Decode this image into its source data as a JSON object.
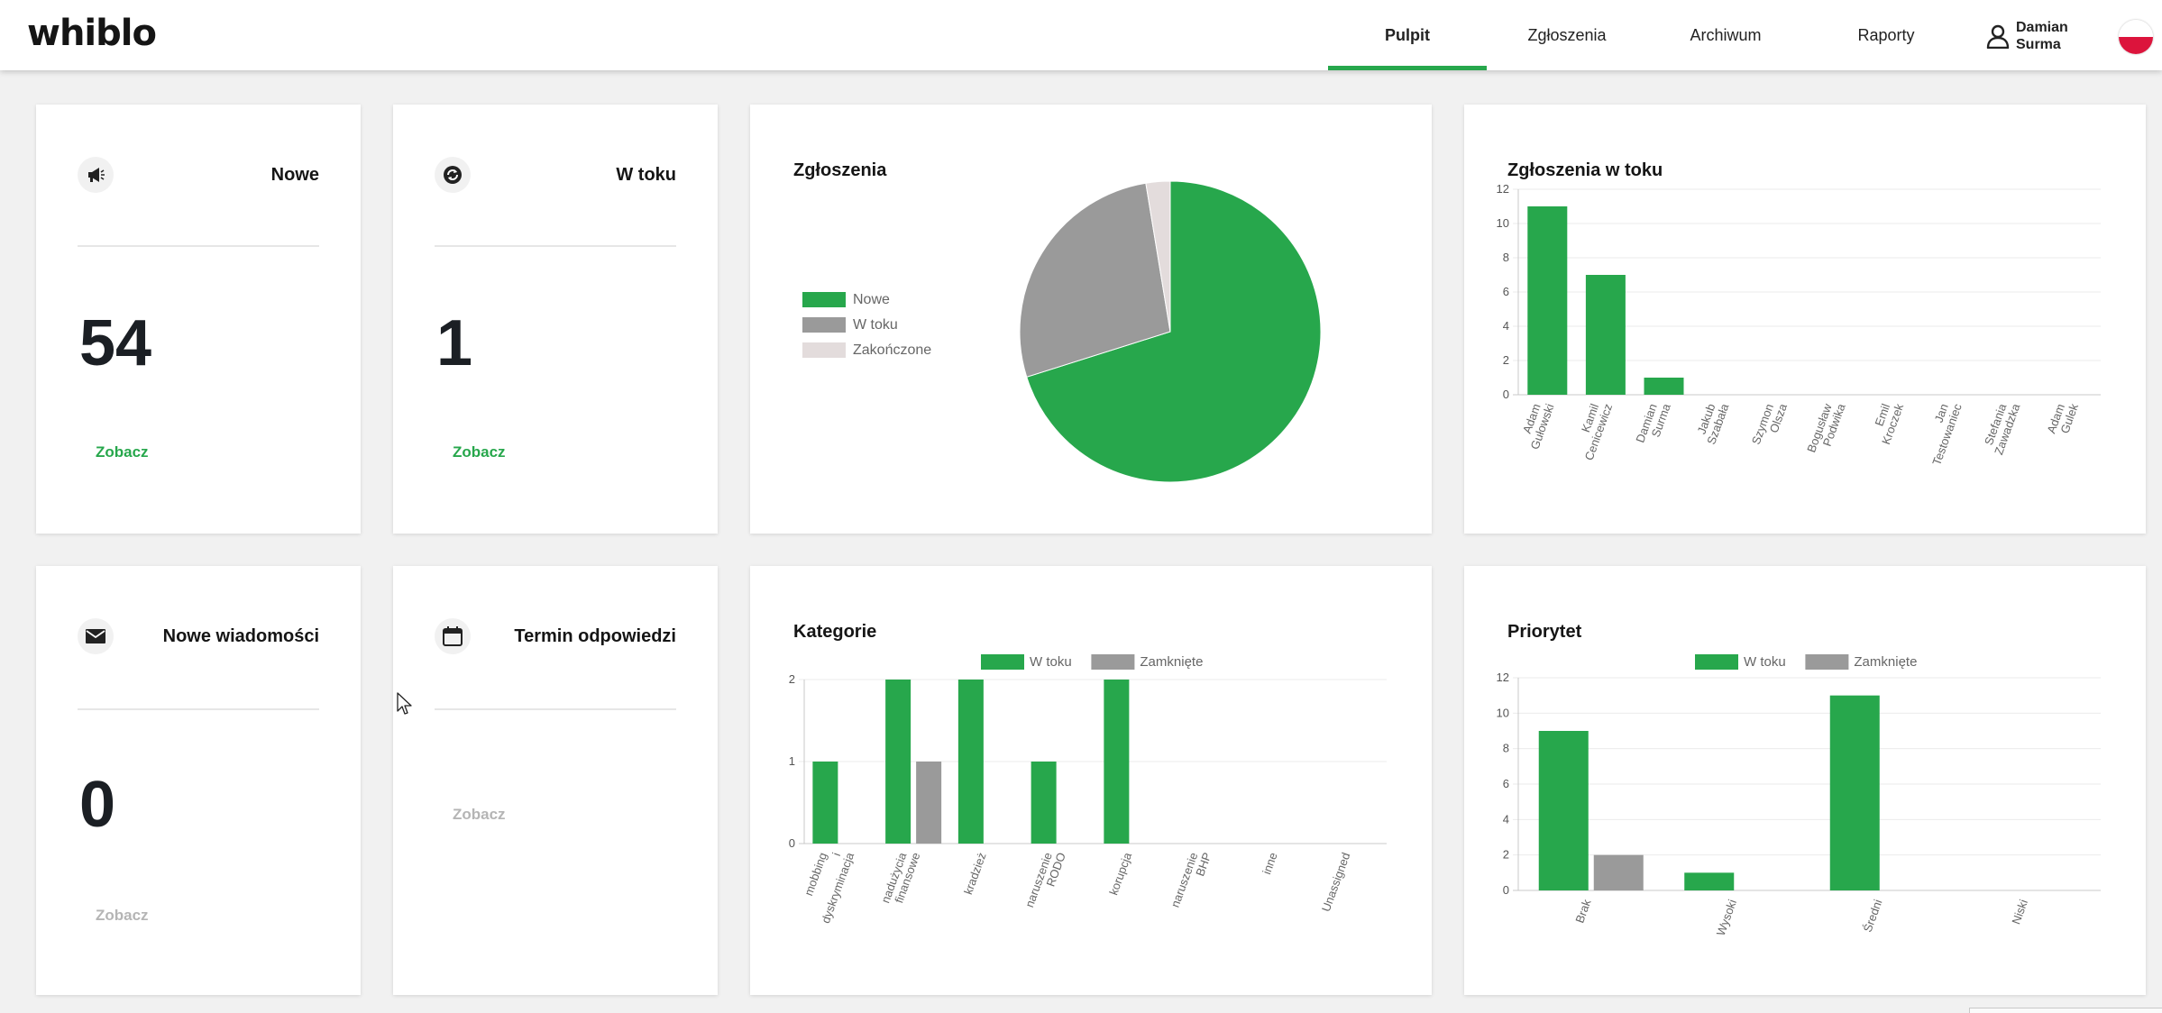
{
  "header": {
    "logo": "whiblo",
    "nav": [
      {
        "label": "Pulpit",
        "active": true
      },
      {
        "label": "Zgłoszenia",
        "active": false
      },
      {
        "label": "Archiwum",
        "active": false
      },
      {
        "label": "Raporty",
        "active": false
      }
    ],
    "user": {
      "first_name": "Damian",
      "last_name": "Surma",
      "icon": "user-icon"
    },
    "flag": {
      "icon": "poland-flag-icon",
      "colors": [
        "#ffffff",
        "#dc143c"
      ]
    }
  },
  "colors": {
    "accent": "#27a74c",
    "gray": "#9a9a9a",
    "light": "#e3dcdc",
    "disabled": "#b5b5b5"
  },
  "cards": {
    "new": {
      "title": "Nowe",
      "value": "54",
      "link": "Zobacz",
      "icon": "megaphone-icon"
    },
    "in_progress": {
      "title": "W toku",
      "value": "1",
      "link": "Zobacz",
      "icon": "sync-icon"
    },
    "messages": {
      "title": "Nowe wiadomości",
      "value": "0",
      "link": "Zobacz",
      "icon": "envelope-icon"
    },
    "deadline": {
      "title": "Termin odpowiedzi",
      "value": "",
      "link": "Zobacz",
      "icon": "calendar-icon"
    }
  },
  "chart_data": [
    {
      "type": "pie",
      "title": "Zgłoszenia",
      "legend_position": "left",
      "labels": [
        "Nowe",
        "W toku",
        "Zakończone"
      ],
      "values": [
        54,
        21,
        2
      ],
      "colors": [
        "#27a74c",
        "#9a9a9a",
        "#e3dcdc"
      ]
    },
    {
      "type": "bar",
      "title": "Zgłoszenia w toku",
      "categories": [
        [
          "Adam",
          "Gułowski"
        ],
        [
          "Kamil",
          "Cenicewicz"
        ],
        [
          "Damian",
          "Surma"
        ],
        [
          "Jakub",
          "Szabała"
        ],
        [
          "Szymon",
          "Olsza"
        ],
        [
          "Bogusław",
          "Podwika"
        ],
        [
          "Emil",
          "Kroczek"
        ],
        [
          "Jan",
          "Testowaniec"
        ],
        [
          "Stefania",
          "Zawadzka"
        ],
        [
          "Adam",
          "Gulek"
        ]
      ],
      "values": [
        11,
        7,
        1,
        0,
        0,
        0,
        0,
        0,
        0,
        0
      ],
      "ylim": [
        0,
        12
      ],
      "yticks": [
        0,
        2,
        4,
        6,
        8,
        10,
        12
      ],
      "grid": true,
      "color": "#27a74c"
    },
    {
      "type": "bar",
      "title": "Kategorie",
      "legend_position": "top",
      "categories": [
        [
          "mobbing",
          "i",
          "dyskryminacja"
        ],
        [
          "nadużycia",
          "finansowe"
        ],
        [
          "kradzież"
        ],
        [
          "naruszenie",
          "RODO"
        ],
        [
          "korupcja"
        ],
        [
          "naruszenie",
          "BHP"
        ],
        [
          "inne"
        ],
        [
          "Unassigned"
        ]
      ],
      "series": [
        {
          "name": "W toku",
          "values": [
            1,
            2,
            2,
            1,
            2,
            0,
            0,
            0
          ],
          "color": "#27a74c"
        },
        {
          "name": "Zamknięte",
          "values": [
            0,
            1,
            0,
            0,
            0,
            0,
            0,
            0
          ],
          "color": "#9a9a9a"
        }
      ],
      "ylim": [
        0,
        2
      ],
      "yticks": [
        0,
        1,
        2
      ],
      "grid": true
    },
    {
      "type": "bar",
      "title": "Priorytet",
      "legend_position": "top",
      "categories": [
        [
          "Brak"
        ],
        [
          "Wysoki"
        ],
        [
          "Średni"
        ],
        [
          "Niski"
        ]
      ],
      "series": [
        {
          "name": "W toku",
          "values": [
            9,
            1,
            11,
            0
          ],
          "color": "#27a74c"
        },
        {
          "name": "Zamknięte",
          "values": [
            2,
            0,
            0,
            0
          ],
          "color": "#9a9a9a"
        }
      ],
      "ylim": [
        0,
        12
      ],
      "yticks": [
        0,
        2,
        4,
        6,
        8,
        10,
        12
      ],
      "grid": true
    }
  ]
}
